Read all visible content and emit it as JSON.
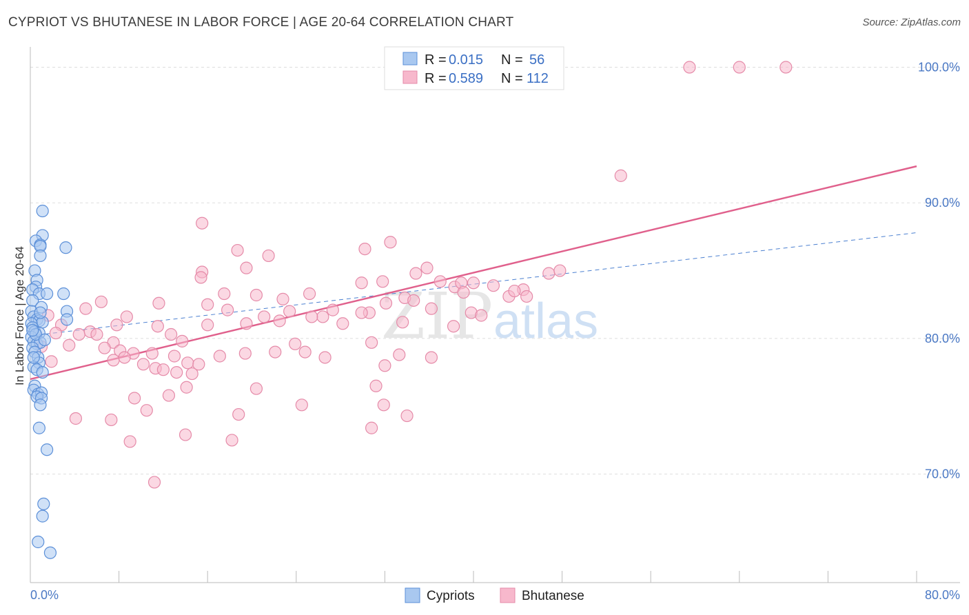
{
  "title": "CYPRIOT VS BHUTANESE IN LABOR FORCE | AGE 20-64 CORRELATION CHART",
  "source": "Source: ZipAtlas.com",
  "watermark": {
    "zip": "ZIP",
    "atlas": "atlas"
  },
  "colors": {
    "cypriot_fill": "#a9c8f0",
    "cypriot_stroke": "#5b8fd8",
    "cypriot_line": "#4a7fd0",
    "bhutanese_fill": "#f7b8cc",
    "bhutanese_stroke": "#e58aa8",
    "bhutanese_line": "#e0608c",
    "grid": "#dddddd",
    "axis_text": "#4a78c4"
  },
  "legend": [
    {
      "r_label": "R = ",
      "r_value": "0.015",
      "n_label": "N = ",
      "n_value": "56"
    },
    {
      "r_label": "R = ",
      "r_value": "0.589",
      "n_label": "N = ",
      "n_value": "112"
    }
  ],
  "chart_data": {
    "type": "scatter",
    "title": "CYPRIOT VS BHUTANESE IN LABOR FORCE | AGE 20-64 CORRELATION CHART",
    "xlabel": "",
    "ylabel": "In Labor Force | Age 20-64",
    "xlim": [
      0,
      80
    ],
    "ylim": [
      62,
      101.5
    ],
    "x_tick_labels": [
      "0.0%",
      "80.0%"
    ],
    "y_ticks": [
      70,
      80,
      90,
      100
    ],
    "y_tick_labels": [
      "70.0%",
      "80.0%",
      "90.0%",
      "100.0%"
    ],
    "grid": true,
    "legend_position": "top-center",
    "series": [
      {
        "name": "Cypriots",
        "trend": {
          "x": [
            0,
            80
          ],
          "y": [
            80.2,
            87.8
          ],
          "style": "dashed"
        },
        "points": [
          [
            1.1,
            89.4
          ],
          [
            1.1,
            87.6
          ],
          [
            0.5,
            87.2
          ],
          [
            0.9,
            86.9
          ],
          [
            0.9,
            86.8
          ],
          [
            3.2,
            86.7
          ],
          [
            0.9,
            86.1
          ],
          [
            0.4,
            85.0
          ],
          [
            0.6,
            84.3
          ],
          [
            0.5,
            83.8
          ],
          [
            0.2,
            83.6
          ],
          [
            0.8,
            83.3
          ],
          [
            1.5,
            83.3
          ],
          [
            3.0,
            83.3
          ],
          [
            0.2,
            82.8
          ],
          [
            1.0,
            82.3
          ],
          [
            3.3,
            82.0
          ],
          [
            0.1,
            82.0
          ],
          [
            0.3,
            81.6
          ],
          [
            0.6,
            81.4
          ],
          [
            0.8,
            81.3
          ],
          [
            1.1,
            81.2
          ],
          [
            3.3,
            81.4
          ],
          [
            0.1,
            81.1
          ],
          [
            0.2,
            80.8
          ],
          [
            0.4,
            80.5
          ],
          [
            0.8,
            80.4
          ],
          [
            0.1,
            80.1
          ],
          [
            0.3,
            79.8
          ],
          [
            0.6,
            79.6
          ],
          [
            0.9,
            79.7
          ],
          [
            0.2,
            79.3
          ],
          [
            0.4,
            79.0
          ],
          [
            0.7,
            78.6
          ],
          [
            0.8,
            78.2
          ],
          [
            0.3,
            77.9
          ],
          [
            0.6,
            77.7
          ],
          [
            1.1,
            77.5
          ],
          [
            0.4,
            76.5
          ],
          [
            0.3,
            76.2
          ],
          [
            0.7,
            75.9
          ],
          [
            1.0,
            76.0
          ],
          [
            0.6,
            75.7
          ],
          [
            1.0,
            75.6
          ],
          [
            0.9,
            75.1
          ],
          [
            0.8,
            73.4
          ],
          [
            1.5,
            71.8
          ],
          [
            1.2,
            67.8
          ],
          [
            1.1,
            66.9
          ],
          [
            0.7,
            65.0
          ],
          [
            1.8,
            64.2
          ],
          [
            0.5,
            80.3
          ],
          [
            0.2,
            80.6
          ],
          [
            0.9,
            81.9
          ],
          [
            0.3,
            78.6
          ],
          [
            1.3,
            79.9
          ]
        ]
      },
      {
        "name": "Bhutanese",
        "trend": {
          "x": [
            0,
            80
          ],
          "y": [
            77.0,
            92.7
          ],
          "style": "solid"
        },
        "points": [
          [
            59.5,
            100.0
          ],
          [
            64.0,
            100.0
          ],
          [
            68.2,
            100.0
          ],
          [
            53.3,
            92.0
          ],
          [
            15.5,
            88.5
          ],
          [
            32.5,
            87.1
          ],
          [
            18.7,
            86.5
          ],
          [
            19.5,
            85.2
          ],
          [
            15.5,
            84.9
          ],
          [
            46.8,
            84.8
          ],
          [
            47.8,
            85.0
          ],
          [
            21.5,
            86.1
          ],
          [
            34.8,
            84.8
          ],
          [
            37.0,
            84.2
          ],
          [
            40.0,
            84.1
          ],
          [
            41.8,
            83.9
          ],
          [
            38.3,
            83.8
          ],
          [
            29.9,
            84.1
          ],
          [
            31.8,
            84.2
          ],
          [
            38.9,
            84.1
          ],
          [
            11.6,
            82.6
          ],
          [
            16.0,
            82.5
          ],
          [
            17.5,
            83.3
          ],
          [
            20.4,
            83.2
          ],
          [
            22.8,
            82.9
          ],
          [
            33.8,
            83.0
          ],
          [
            39.1,
            83.4
          ],
          [
            44.5,
            83.6
          ],
          [
            43.2,
            83.1
          ],
          [
            44.8,
            83.1
          ],
          [
            43.7,
            83.5
          ],
          [
            25.2,
            83.3
          ],
          [
            34.6,
            82.8
          ],
          [
            32.1,
            82.6
          ],
          [
            27.3,
            82.1
          ],
          [
            5.0,
            82.2
          ],
          [
            6.4,
            82.7
          ],
          [
            8.7,
            81.6
          ],
          [
            17.8,
            82.1
          ],
          [
            23.4,
            82.0
          ],
          [
            26.4,
            81.6
          ],
          [
            30.6,
            81.9
          ],
          [
            36.2,
            82.2
          ],
          [
            39.8,
            81.9
          ],
          [
            40.7,
            81.7
          ],
          [
            21.1,
            81.6
          ],
          [
            22.5,
            81.3
          ],
          [
            25.4,
            81.6
          ],
          [
            28.2,
            81.1
          ],
          [
            29.9,
            81.9
          ],
          [
            16.0,
            81.0
          ],
          [
            19.5,
            81.1
          ],
          [
            33.6,
            81.2
          ],
          [
            38.2,
            80.9
          ],
          [
            1.6,
            81.7
          ],
          [
            2.8,
            81.0
          ],
          [
            2.3,
            80.4
          ],
          [
            4.4,
            80.3
          ],
          [
            5.4,
            80.5
          ],
          [
            6.0,
            80.3
          ],
          [
            7.8,
            81.0
          ],
          [
            11.5,
            80.9
          ],
          [
            12.7,
            80.3
          ],
          [
            7.5,
            79.7
          ],
          [
            13.7,
            79.8
          ],
          [
            23.9,
            79.6
          ],
          [
            30.8,
            79.7
          ],
          [
            1.0,
            79.4
          ],
          [
            3.5,
            79.5
          ],
          [
            6.7,
            79.3
          ],
          [
            8.1,
            79.1
          ],
          [
            9.3,
            78.9
          ],
          [
            11.0,
            78.9
          ],
          [
            13.0,
            78.7
          ],
          [
            14.2,
            78.2
          ],
          [
            15.2,
            78.1
          ],
          [
            17.1,
            78.7
          ],
          [
            19.4,
            78.9
          ],
          [
            22.1,
            79.0
          ],
          [
            24.8,
            79.0
          ],
          [
            26.6,
            78.6
          ],
          [
            33.3,
            78.8
          ],
          [
            36.2,
            78.6
          ],
          [
            32.0,
            78.0
          ],
          [
            1.9,
            78.3
          ],
          [
            7.5,
            78.4
          ],
          [
            8.5,
            78.6
          ],
          [
            10.2,
            78.1
          ],
          [
            11.3,
            77.8
          ],
          [
            12.0,
            77.7
          ],
          [
            13.2,
            77.5
          ],
          [
            14.6,
            77.4
          ],
          [
            14.1,
            76.4
          ],
          [
            20.4,
            76.3
          ],
          [
            31.2,
            76.5
          ],
          [
            12.5,
            75.8
          ],
          [
            9.4,
            75.6
          ],
          [
            24.5,
            75.1
          ],
          [
            31.9,
            75.1
          ],
          [
            10.5,
            74.7
          ],
          [
            4.1,
            74.1
          ],
          [
            7.3,
            74.0
          ],
          [
            18.8,
            74.4
          ],
          [
            34.0,
            74.3
          ],
          [
            30.8,
            73.4
          ],
          [
            14.0,
            72.9
          ],
          [
            9.0,
            72.4
          ],
          [
            18.2,
            72.5
          ],
          [
            11.2,
            69.4
          ],
          [
            35.8,
            85.2
          ],
          [
            30.2,
            86.6
          ],
          [
            15.4,
            84.5
          ]
        ]
      }
    ]
  },
  "bottom_legend": [
    "Cypriots",
    "Bhutanese"
  ]
}
